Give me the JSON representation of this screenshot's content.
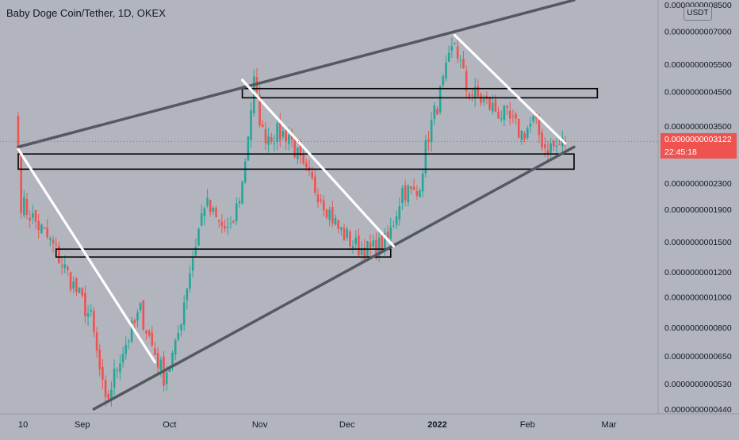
{
  "header": {
    "title": "Baby Doge Coin/Tether, 1D, OKEX"
  },
  "price_axis": {
    "currency_button": "USDT",
    "labels": [
      "0.0000000008500",
      "0.0000000007000",
      "0.0000000005500",
      "0.0000000004500",
      "0.0000000003500",
      "0.0000000002300",
      "0.0000000001900",
      "0.0000000001500",
      "0.0000000001200",
      "0.0000000001000",
      "0.0000000000800",
      "0.0000000000650",
      "0.0000000000530",
      "0.0000000000440"
    ],
    "current_price": "0.0000000003122",
    "countdown": "22:45:18"
  },
  "time_axis": {
    "labels": [
      "10",
      "Sep",
      "Oct",
      "Nov",
      "Dec",
      "2022",
      "Feb",
      "Mar"
    ]
  },
  "colors": {
    "background": "#b2b5be",
    "up": "#26a69a",
    "down": "#ef5350",
    "channel": "#555861",
    "trendline": "#ffffff",
    "zone": "#000000",
    "price_tag": "#ef5350"
  },
  "chart_data": {
    "type": "candlestick",
    "symbol": "Baby Doge Coin/Tether",
    "interval": "1D",
    "exchange": "OKEX",
    "y_scale": "log",
    "ylim": [
      4.4e-11,
      8.5e-10
    ],
    "current_price": 3.122e-10,
    "countdown": "22:45:18",
    "anchors": [
      {
        "d": 0,
        "p": 2.9e-10
      },
      {
        "d": 1,
        "p": 2e-10
      },
      {
        "d": 12,
        "p": 1.45e-10
      },
      {
        "d": 25,
        "p": 8.5e-11
      },
      {
        "d": 30,
        "p": 4.5e-11
      },
      {
        "d": 35,
        "p": 6.5e-11
      },
      {
        "d": 42,
        "p": 9e-11
      },
      {
        "d": 46,
        "p": 7e-11
      },
      {
        "d": 50,
        "p": 5.6e-11
      },
      {
        "d": 54,
        "p": 6.8e-11
      },
      {
        "d": 58,
        "p": 1.1e-10
      },
      {
        "d": 64,
        "p": 2e-10
      },
      {
        "d": 69,
        "p": 1.7e-10
      },
      {
        "d": 73,
        "p": 1.6e-10
      },
      {
        "d": 77,
        "p": 2.3e-10
      },
      {
        "d": 81,
        "p": 4.8e-10
      },
      {
        "d": 84,
        "p": 3.3e-10
      },
      {
        "d": 88,
        "p": 3.3e-10
      },
      {
        "d": 93,
        "p": 3.3e-10
      },
      {
        "d": 98,
        "p": 2.5e-10
      },
      {
        "d": 104,
        "p": 2.1e-10
      },
      {
        "d": 110,
        "p": 1.65e-10
      },
      {
        "d": 116,
        "p": 1.45e-10
      },
      {
        "d": 121,
        "p": 1.4e-10
      },
      {
        "d": 127,
        "p": 1.5e-10
      },
      {
        "d": 132,
        "p": 2.2e-10
      },
      {
        "d": 137,
        "p": 2.1e-10
      },
      {
        "d": 141,
        "p": 3.3e-10
      },
      {
        "d": 145,
        "p": 4.4e-10
      },
      {
        "d": 150,
        "p": 6.5e-10
      },
      {
        "d": 154,
        "p": 4.6e-10
      },
      {
        "d": 158,
        "p": 4.3e-10
      },
      {
        "d": 163,
        "p": 4e-10
      },
      {
        "d": 168,
        "p": 3.7e-10
      },
      {
        "d": 173,
        "p": 3.3e-10
      },
      {
        "d": 177,
        "p": 3.6e-10
      },
      {
        "d": 181,
        "p": 3e-10
      },
      {
        "d": 185,
        "p": 3e-10
      },
      {
        "d": 188,
        "p": 3.12e-10
      }
    ],
    "channel_lines": [
      {
        "name": "upper",
        "from": {
          "d": 0,
          "p": 3e-10
        },
        "to": {
          "d": 191,
          "p": 8.8e-10
        }
      },
      {
        "name": "lower",
        "from": {
          "d": 26,
          "p": 4.4e-11
        },
        "to": {
          "d": 191,
          "p": 3e-10
        }
      }
    ],
    "trend_lines": [
      {
        "from": {
          "d": 0,
          "p": 2.95e-10
        },
        "to": {
          "d": 47,
          "p": 6.2e-11
        }
      },
      {
        "from": {
          "d": 77,
          "p": 4.9e-10
        },
        "to": {
          "d": 129,
          "p": 1.45e-10
        }
      },
      {
        "from": {
          "d": 150,
          "p": 6.8e-10
        },
        "to": {
          "d": 188,
          "p": 3.08e-10
        }
      }
    ],
    "zones": [
      {
        "from_d": 0,
        "to_d": 191,
        "high": 2.85e-10,
        "low": 2.55e-10
      },
      {
        "from_d": 13,
        "to_d": 128,
        "high": 1.42e-10,
        "low": 1.34e-10
      },
      {
        "from_d": 77,
        "to_d": 199,
        "high": 4.6e-10,
        "low": 4.3e-10
      }
    ],
    "x_ticks": [
      {
        "label": "10",
        "d": 0
      },
      {
        "label": "Sep",
        "d": 22
      },
      {
        "label": "Oct",
        "d": 52
      },
      {
        "label": "Nov",
        "d": 83
      },
      {
        "label": "Dec",
        "d": 113
      },
      {
        "label": "2022",
        "d": 144
      },
      {
        "label": "Feb",
        "d": 175
      },
      {
        "label": "Mar",
        "d": 203
      }
    ],
    "y_ticks": [
      8.5e-10,
      7e-10,
      5.5e-10,
      4.5e-10,
      3.5e-10,
      2.3e-10,
      1.9e-10,
      1.5e-10,
      1.2e-10,
      1e-10,
      8e-11,
      6.5e-11,
      5.3e-11,
      4.4e-11
    ]
  }
}
